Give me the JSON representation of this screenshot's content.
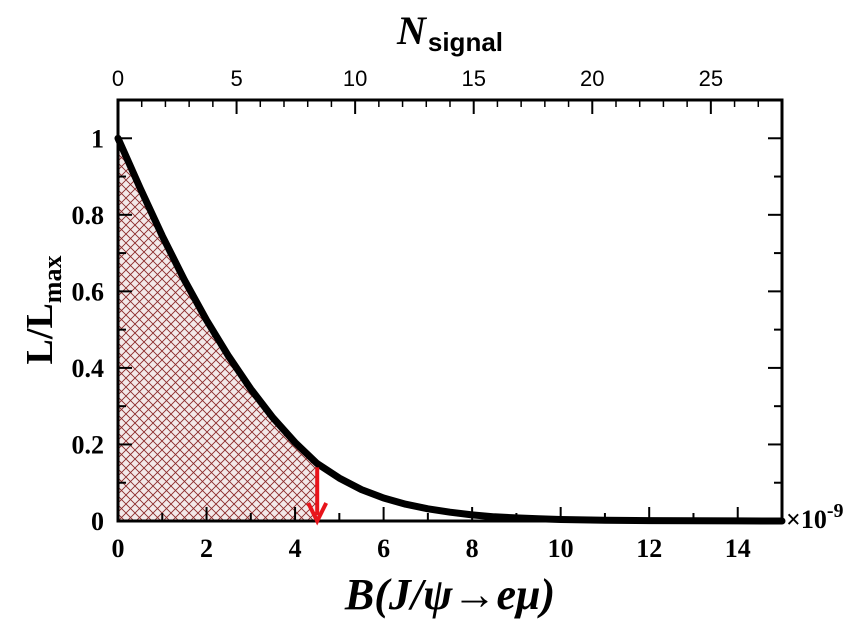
{
  "chart_data": {
    "type": "line",
    "xlabel": "B(J/ψ→eμ)",
    "ylabel": "L/L",
    "ylabel_sub": "max",
    "top_xlabel": "N",
    "top_xlabel_sub": "signal",
    "x_multiplier": "×10",
    "x_multiplier_exp": "-9",
    "xlim": [
      0,
      15
    ],
    "ylim": [
      0,
      1.1
    ],
    "x_ticks": [
      0,
      2,
      4,
      6,
      8,
      10,
      12,
      14
    ],
    "y_ticks": [
      0,
      0.2,
      0.4,
      0.6,
      0.8,
      1
    ],
    "top_axis": {
      "scale": 1.8667,
      "ticks": [
        0,
        5,
        10,
        15,
        20,
        25
      ]
    },
    "series": [
      {
        "x": [
          0,
          0.5,
          1,
          1.5,
          2,
          2.5,
          3,
          3.5,
          4,
          4.5,
          5,
          5.5,
          6,
          6.5,
          7,
          7.5,
          8,
          8.5,
          9,
          9.5,
          10,
          11,
          12,
          13,
          14,
          15
        ],
        "y": [
          1.0,
          0.87,
          0.745,
          0.63,
          0.525,
          0.43,
          0.345,
          0.27,
          0.205,
          0.15,
          0.112,
          0.082,
          0.06,
          0.044,
          0.032,
          0.023,
          0.016,
          0.011,
          0.008,
          0.006,
          0.004,
          0.002,
          0.001,
          0.0005,
          0.0002,
          0.0001
        ],
        "color": "#000000"
      }
    ],
    "shaded_region": {
      "x_from": 0,
      "x_to": 4.5,
      "color": "#8b2a2a",
      "pattern": "crosshatch"
    },
    "limit_arrow": {
      "x": 4.5,
      "y_from": 0.14,
      "y_to": 0,
      "color": "#e8141b"
    }
  }
}
